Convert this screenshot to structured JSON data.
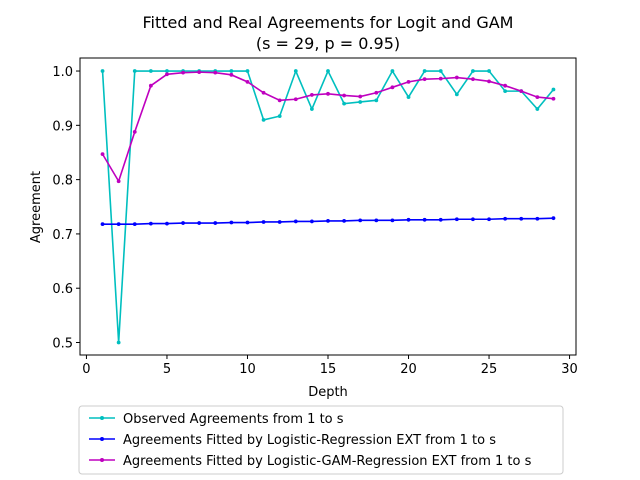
{
  "chart_data": {
    "type": "line",
    "title": "Fitted and Real Agreements for Logit and GAM",
    "subtitle": "(s = 29, p = 0.95)",
    "xlabel": "Depth",
    "ylabel": "Agreement",
    "xlim": [
      -0.4,
      30.4
    ],
    "ylim": [
      0.477,
      1.024
    ],
    "xticks": [
      0,
      5,
      10,
      15,
      20,
      25,
      30
    ],
    "yticks": [
      0.5,
      0.6,
      0.7,
      0.8,
      0.9,
      1.0
    ],
    "ytick_labels": [
      "0.5",
      "0.6",
      "0.7",
      "0.8",
      "0.9",
      "1.0"
    ],
    "grid": false,
    "legend_position": "below",
    "x": [
      1,
      2,
      3,
      4,
      5,
      6,
      7,
      8,
      9,
      10,
      11,
      12,
      13,
      14,
      15,
      16,
      17,
      18,
      19,
      20,
      21,
      22,
      23,
      24,
      25,
      26,
      27,
      28,
      29
    ],
    "series": [
      {
        "name": "Observed Agreements from 1 to s",
        "color": "#00bfbf",
        "values": [
          1.0,
          0.5,
          1.0,
          1.0,
          1.0,
          1.0,
          1.0,
          1.0,
          1.0,
          1.0,
          0.91,
          0.917,
          1.0,
          0.93,
          1.0,
          0.94,
          0.943,
          0.946,
          1.0,
          0.952,
          1.0,
          1.0,
          0.957,
          1.0,
          1.0,
          0.963,
          0.963,
          0.93,
          0.966
        ]
      },
      {
        "name": "Agreements Fitted by Logistic-Regression EXT from 1 to s",
        "color": "#0000ff",
        "values": [
          0.718,
          0.718,
          0.718,
          0.719,
          0.719,
          0.72,
          0.72,
          0.72,
          0.721,
          0.721,
          0.722,
          0.722,
          0.723,
          0.723,
          0.724,
          0.724,
          0.725,
          0.725,
          0.725,
          0.726,
          0.726,
          0.726,
          0.727,
          0.727,
          0.727,
          0.728,
          0.728,
          0.728,
          0.729
        ]
      },
      {
        "name": "Agreements Fitted by Logistic-GAM-Regression EXT from 1 to s",
        "color": "#bf00bf",
        "values": [
          0.847,
          0.797,
          0.888,
          0.973,
          0.994,
          0.997,
          0.998,
          0.997,
          0.993,
          0.98,
          0.96,
          0.946,
          0.948,
          0.956,
          0.958,
          0.955,
          0.953,
          0.96,
          0.97,
          0.98,
          0.985,
          0.986,
          0.988,
          0.985,
          0.981,
          0.973,
          0.963,
          0.952,
          0.949
        ]
      }
    ]
  }
}
